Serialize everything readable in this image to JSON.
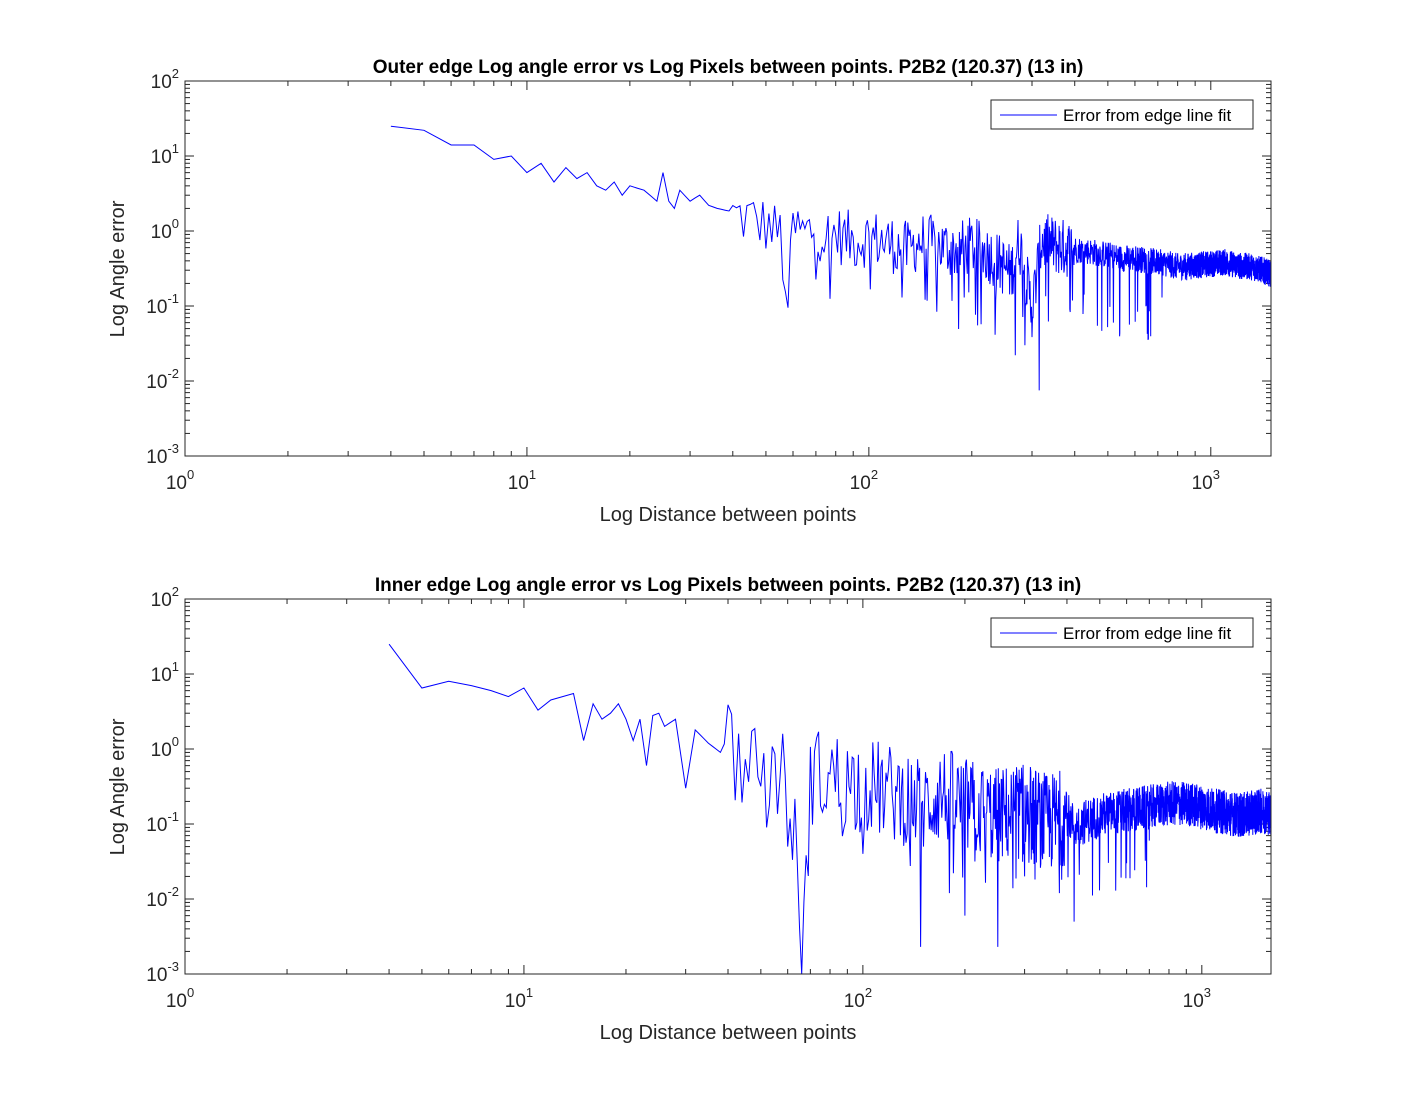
{
  "colors": {
    "line": "#0000ff",
    "axes": "#262626",
    "background": "#ffffff"
  },
  "chart_data": [
    {
      "type": "line",
      "title": "Outer edge Log angle error vs Log Pixels between points. P2B2 (120.37) (13 in)",
      "xlabel": "Log Distance between points",
      "ylabel": "Log Angle error",
      "xscale": "log",
      "yscale": "log",
      "xlim": [
        1,
        1500
      ],
      "ylim": [
        0.001,
        100
      ],
      "xticks": [
        {
          "value": 1,
          "base": "10",
          "exp": "0"
        },
        {
          "value": 10,
          "base": "10",
          "exp": "1"
        },
        {
          "value": 100,
          "base": "10",
          "exp": "2"
        },
        {
          "value": 1000,
          "base": "10",
          "exp": "3"
        }
      ],
      "yticks": [
        {
          "value": 0.001,
          "base": "10",
          "exp": "-3"
        },
        {
          "value": 0.01,
          "base": "10",
          "exp": "-2"
        },
        {
          "value": 0.1,
          "base": "10",
          "exp": "-1"
        },
        {
          "value": 1,
          "base": "10",
          "exp": "0"
        },
        {
          "value": 10,
          "base": "10",
          "exp": "1"
        },
        {
          "value": 100,
          "base": "10",
          "exp": "2"
        }
      ],
      "legend": {
        "placement": "top-right",
        "entries": [
          "Error from edge line fit"
        ]
      },
      "series": [
        {
          "name": "Error from edge line fit",
          "x": [
            4,
            5,
            6,
            7,
            8,
            9,
            10,
            11,
            12,
            13,
            14,
            15,
            16,
            17,
            18,
            19,
            20,
            22,
            24,
            25,
            26,
            27,
            28,
            30,
            32,
            34,
            36,
            40,
            45,
            50,
            55,
            58,
            60,
            65,
            70,
            75,
            80,
            90,
            100,
            110,
            120,
            130,
            140,
            160,
            180,
            200,
            230,
            260,
            275,
            300,
            320,
            350,
            400,
            450,
            500,
            550,
            600,
            650,
            700,
            750,
            800,
            900,
            1000,
            1100,
            1200,
            1300,
            1400,
            1500
          ],
          "y": [
            25,
            22,
            14,
            14,
            9,
            10,
            6,
            8,
            4.5,
            7,
            5,
            6,
            4,
            3.5,
            4.5,
            3,
            4,
            3.5,
            2.5,
            6,
            2.5,
            2,
            3.5,
            2.5,
            3,
            2.2,
            2,
            1.8,
            1.6,
            1.3,
            1.0,
            0.1,
            1.2,
            1.0,
            1.2,
            0.9,
            1.0,
            0.8,
            0.9,
            0.8,
            0.7,
            0.6,
            0.8,
            0.7,
            0.6,
            0.7,
            0.5,
            0.3,
            0.8,
            0.1,
            0.8,
            0.7,
            0.6,
            0.55,
            0.5,
            0.45,
            0.45,
            0.42,
            0.4,
            0.38,
            0.35,
            0.36,
            0.38,
            0.4,
            0.36,
            0.35,
            0.32,
            0.28
          ],
          "dips": [
            [
              58,
              0.095
            ],
            [
              125,
              0.13
            ],
            [
              190,
              0.13
            ],
            [
              235,
              0.12
            ],
            [
              268,
              0.022
            ],
            [
              315,
              0.0075
            ],
            [
              720,
              0.13
            ],
            [
              850,
              0.22
            ]
          ],
          "noise": 0.18
        }
      ]
    },
    {
      "type": "line",
      "title": "Inner edge Log angle error vs Log Pixels between points. P2B2 (120.37) (13 in)",
      "xlabel": "Log Distance between points",
      "ylabel": "Log Angle error",
      "xscale": "log",
      "yscale": "log",
      "xlim": [
        1,
        1600
      ],
      "ylim": [
        0.001,
        100
      ],
      "xticks": [
        {
          "value": 1,
          "base": "10",
          "exp": "0"
        },
        {
          "value": 10,
          "base": "10",
          "exp": "1"
        },
        {
          "value": 100,
          "base": "10",
          "exp": "2"
        },
        {
          "value": 1000,
          "base": "10",
          "exp": "3"
        }
      ],
      "yticks": [
        {
          "value": 0.001,
          "base": "10",
          "exp": "-3"
        },
        {
          "value": 0.01,
          "base": "10",
          "exp": "-2"
        },
        {
          "value": 0.1,
          "base": "10",
          "exp": "-1"
        },
        {
          "value": 1,
          "base": "10",
          "exp": "0"
        },
        {
          "value": 10,
          "base": "10",
          "exp": "1"
        },
        {
          "value": 100,
          "base": "10",
          "exp": "2"
        }
      ],
      "legend": {
        "placement": "top-right",
        "entries": [
          "Error from edge line fit"
        ]
      },
      "series": [
        {
          "name": "Error from edge line fit",
          "x": [
            4,
            5,
            6,
            7,
            8,
            9,
            10,
            11,
            12,
            13,
            14,
            15,
            16,
            17,
            18,
            19,
            20,
            21,
            22,
            23,
            24,
            25,
            26,
            28,
            30,
            32,
            35,
            38,
            40,
            45,
            50,
            55,
            60,
            66,
            70,
            80,
            90,
            100,
            120,
            140,
            150,
            170,
            200,
            250,
            300,
            350,
            400,
            420,
            500,
            600,
            700,
            800,
            900,
            1000,
            1100,
            1200,
            1300,
            1400,
            1500,
            1600
          ],
          "y": [
            25,
            6.5,
            8,
            7,
            6,
            5,
            6.5,
            3.3,
            4.5,
            5,
            5.5,
            1.3,
            4,
            2.5,
            3,
            4,
            2.5,
            1.3,
            2.5,
            0.6,
            2.8,
            3,
            2,
            2.5,
            0.3,
            1.8,
            1.2,
            0.9,
            1.5,
            0.7,
            0.8,
            0.6,
            0.5,
            0.009,
            0.5,
            0.5,
            0.4,
            0.4,
            0.3,
            0.25,
            0.2,
            0.3,
            0.2,
            0.15,
            0.18,
            0.12,
            0.15,
            0.1,
            0.14,
            0.16,
            0.18,
            0.2,
            0.2,
            0.18,
            0.16,
            0.15,
            0.14,
            0.15,
            0.16,
            0.15
          ],
          "dips": [
            [
              52,
              0.09
            ],
            [
              60,
              0.05
            ],
            [
              67,
              0.009
            ],
            [
              100,
              0.04
            ],
            [
              148,
              0.0023
            ],
            [
              180,
              0.012
            ],
            [
              200,
              0.006
            ],
            [
              250,
              0.0023
            ],
            [
              300,
              0.02
            ],
            [
              380,
              0.012
            ],
            [
              420,
              0.005
            ],
            [
              600,
              0.03
            ],
            [
              700,
              0.06
            ]
          ],
          "noise": 0.3
        }
      ]
    }
  ]
}
